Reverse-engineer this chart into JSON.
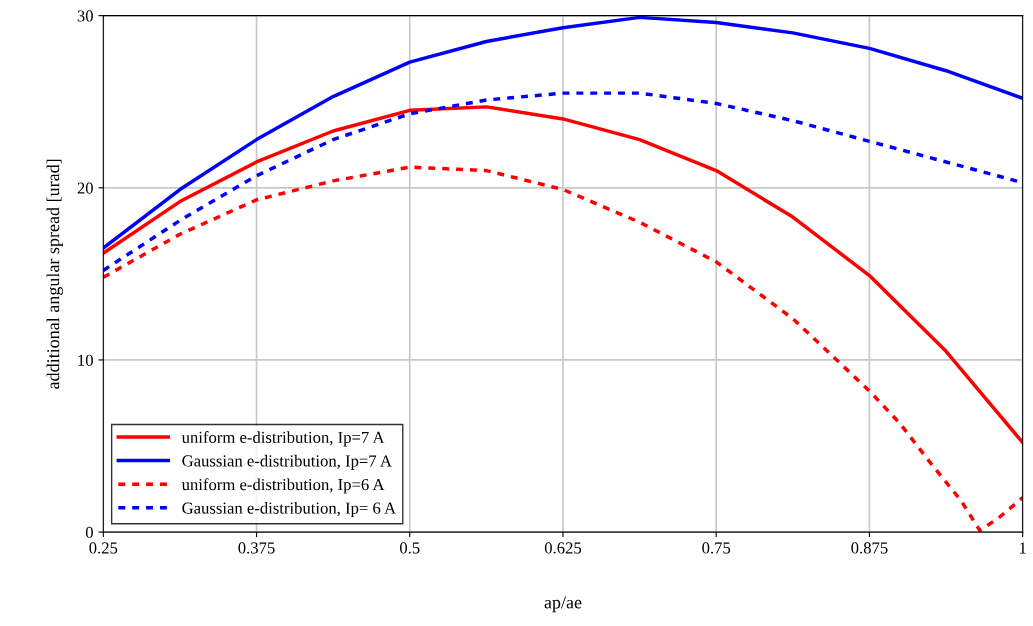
{
  "chart_data": {
    "type": "line",
    "xlabel": "ap/ae",
    "ylabel": "additional angular spread [urad]",
    "x": [
      0.25,
      0.3125,
      0.375,
      0.4375,
      0.5,
      0.5625,
      0.625,
      0.6875,
      0.75,
      0.8125,
      0.875,
      0.9375,
      1
    ],
    "series": [
      {
        "name": "uniform e-distribution, Ip=7 A",
        "color": "#ff0000",
        "line_style": "solid",
        "values": [
          16.2,
          19.2,
          21.5,
          23.3,
          24.5,
          24.7,
          24.0,
          22.8,
          21.0,
          18.3,
          14.9,
          10.5,
          5.2
        ]
      },
      {
        "name": "Gaussian e-distribution, Ip=7 A",
        "color": "#0000ff",
        "line_style": "solid",
        "values": [
          16.5,
          19.9,
          22.8,
          25.3,
          27.3,
          28.5,
          29.3,
          29.9,
          29.6,
          29.0,
          28.1,
          26.8,
          25.2
        ]
      },
      {
        "name": "uniform e-distribution, Ip=6 A",
        "color": "#ff0000",
        "line_style": "dashed",
        "x": [
          0.25,
          0.3125,
          0.375,
          0.4375,
          0.5,
          0.5625,
          0.625,
          0.6875,
          0.75,
          0.8125,
          0.875,
          0.9,
          0.925,
          0.95,
          0.965,
          0.98,
          1
        ],
        "values": [
          14.8,
          17.3,
          19.3,
          20.4,
          21.2,
          21.0,
          19.9,
          18.0,
          15.7,
          12.4,
          8.2,
          6.3,
          4.0,
          1.8,
          0.1,
          0.8,
          2.0
        ]
      },
      {
        "name": "Gaussian e-distribution, Ip= 6 A",
        "color": "#0000ff",
        "line_style": "dashed",
        "values": [
          15.2,
          18.1,
          20.7,
          22.8,
          24.3,
          25.1,
          25.5,
          25.5,
          24.9,
          23.9,
          22.7,
          21.5,
          20.3
        ]
      }
    ],
    "xlim": [
      0.25,
      1
    ],
    "ylim": [
      0,
      30
    ],
    "xticks": [
      {
        "value": 0.25,
        "label": "0.25"
      },
      {
        "value": 0.375,
        "label": "0.375"
      },
      {
        "value": 0.5,
        "label": "0.5"
      },
      {
        "value": 0.625,
        "label": "0.625"
      },
      {
        "value": 0.75,
        "label": "0.75"
      },
      {
        "value": 0.875,
        "label": "0.875"
      },
      {
        "value": 1,
        "label": "1"
      }
    ],
    "yticks": [
      0,
      10,
      20,
      30
    ],
    "grid": true,
    "legend": "bottom left"
  }
}
